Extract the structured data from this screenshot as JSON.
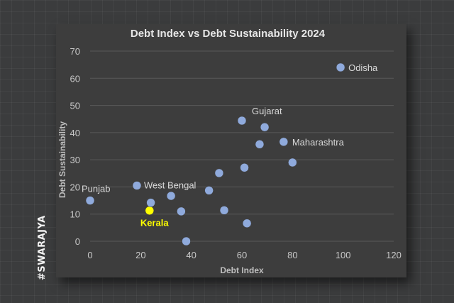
{
  "watermark": "#SWARAJYA",
  "colors": {
    "background": "#3b3c3d",
    "plot": "#3d3d3d",
    "point": "#8faadc",
    "highlight": "#ffff00",
    "text": "#d9d9d9"
  },
  "chart_data": {
    "type": "scatter",
    "title": "Debt Index vs Debt Sustainability 2024",
    "xlabel": "Debt Index",
    "ylabel": "Debt Sustainability",
    "xlim": [
      0,
      120
    ],
    "ylim": [
      0,
      70
    ],
    "xticks": [
      0,
      20,
      40,
      60,
      80,
      100,
      120
    ],
    "yticks": [
      0,
      10,
      20,
      30,
      40,
      50,
      60,
      70
    ],
    "grid": "horizontal",
    "points": [
      {
        "x": 0,
        "y": 15,
        "label": "Punjab"
      },
      {
        "x": 18.5,
        "y": 20.5,
        "label": "West Bengal"
      },
      {
        "x": 23.5,
        "y": 11.3,
        "label": "Kerala",
        "highlight": true
      },
      {
        "x": 24,
        "y": 14.2
      },
      {
        "x": 32,
        "y": 16.7
      },
      {
        "x": 36,
        "y": 11
      },
      {
        "x": 38,
        "y": 0
      },
      {
        "x": 47,
        "y": 18.7
      },
      {
        "x": 51,
        "y": 25.1
      },
      {
        "x": 53,
        "y": 11.4
      },
      {
        "x": 60,
        "y": 44.4,
        "label": "Gujarat"
      },
      {
        "x": 61,
        "y": 27.1
      },
      {
        "x": 62,
        "y": 6.6
      },
      {
        "x": 67,
        "y": 35.7
      },
      {
        "x": 69,
        "y": 42
      },
      {
        "x": 76.5,
        "y": 36.6,
        "label": "Maharashtra"
      },
      {
        "x": 80,
        "y": 29
      },
      {
        "x": 99,
        "y": 64,
        "label": "Odisha"
      }
    ]
  }
}
